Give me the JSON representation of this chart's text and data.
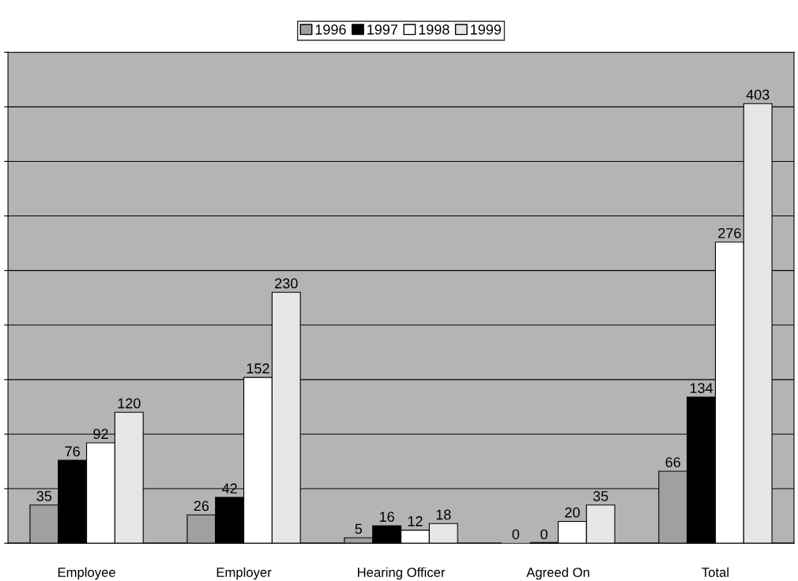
{
  "chart_data": {
    "type": "bar",
    "categories": [
      "Employee",
      "Employer",
      "Hearing Officer",
      "Agreed On",
      "Total"
    ],
    "series": [
      {
        "name": "1996",
        "color": "#a0a0a0",
        "values": [
          35,
          26,
          5,
          0,
          66
        ]
      },
      {
        "name": "1997",
        "color": "#000000",
        "values": [
          76,
          42,
          16,
          0,
          134
        ]
      },
      {
        "name": "1998",
        "color": "#ffffff",
        "values": [
          92,
          152,
          12,
          20,
          276
        ]
      },
      {
        "name": "1999",
        "color": "#e6e6e6",
        "values": [
          120,
          230,
          18,
          35,
          403
        ]
      }
    ],
    "ylim": [
      0,
      450
    ],
    "yticks": [
      {
        "value": 0,
        "label": null
      },
      {
        "value": 50,
        "label": null
      },
      {
        "value": 100,
        "label": null
      },
      {
        "value": 150,
        "label": null
      },
      {
        "value": 200,
        "label": null
      },
      {
        "value": 250,
        "label": null
      },
      {
        "value": 300,
        "label": null
      },
      {
        "value": 350,
        "label": null
      },
      {
        "value": 400,
        "label": null
      },
      {
        "value": 450,
        "label": null
      }
    ],
    "grid": "y",
    "legend": "top",
    "data_labels": true
  }
}
